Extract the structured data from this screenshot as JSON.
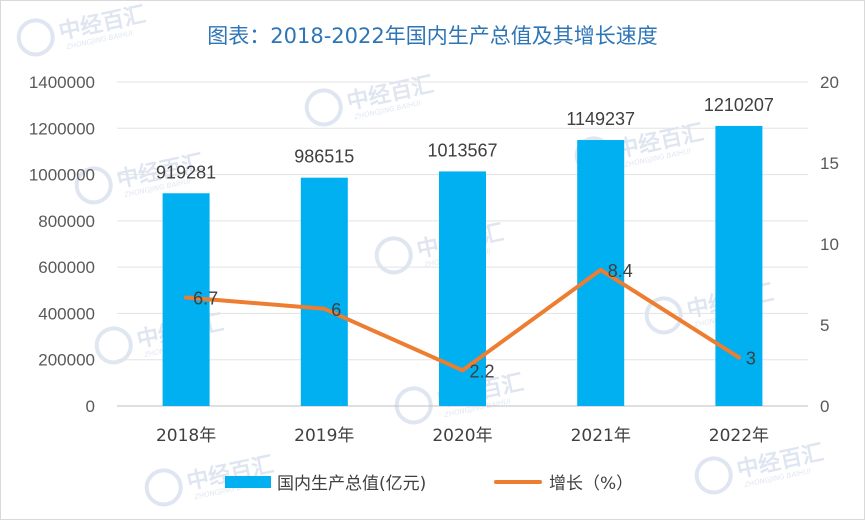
{
  "watermark": {
    "brand": "中经百汇",
    "sub": "ZHONGJING BAIHUI"
  },
  "chart_data": {
    "type": "bar+line",
    "title": "图表：2018-2022年国内生产总值及其增长速度",
    "categories": [
      "2018年",
      "2019年",
      "2020年",
      "2021年",
      "2022年"
    ],
    "series": [
      {
        "name": "国内生产总值(亿元)",
        "type": "bar",
        "axis": "left",
        "color": "#00b0f0",
        "values": [
          919281,
          986515,
          1013567,
          1149237,
          1210207
        ],
        "labels": [
          "919281",
          "986515",
          "1013567",
          "1149237",
          "1210207"
        ]
      },
      {
        "name": "增长（%）",
        "type": "line",
        "axis": "right",
        "color": "#ed7d31",
        "values": [
          6.7,
          6,
          2.2,
          8.4,
          3
        ],
        "labels": [
          "6.7",
          "6",
          "2.2",
          "8.4",
          "3"
        ]
      }
    ],
    "y_left": {
      "min": 0,
      "max": 1400000,
      "step": 200000,
      "ticks": [
        "0",
        "200000",
        "400000",
        "600000",
        "800000",
        "1000000",
        "1200000",
        "1400000"
      ]
    },
    "y_right": {
      "min": 0,
      "max": 20,
      "step": 5,
      "ticks": [
        "0",
        "5",
        "10",
        "15",
        "20"
      ]
    },
    "grid": true,
    "legend": "bottom"
  }
}
